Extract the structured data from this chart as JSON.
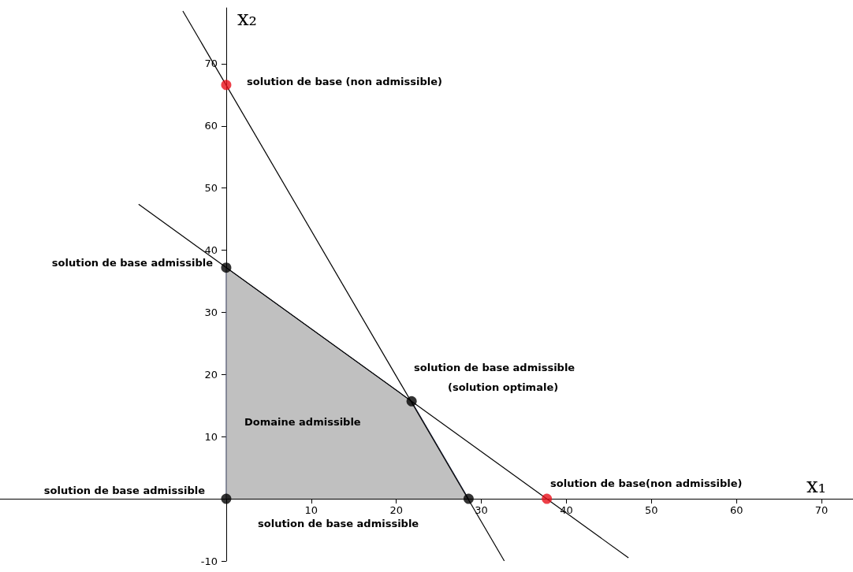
{
  "chart_data": {
    "type": "line",
    "xlabel": "x₁",
    "ylabel": "x₂",
    "xlim": [
      -26.6,
      73.7
    ],
    "ylim": [
      -10,
      79
    ],
    "xticks": [
      10,
      20,
      30,
      40,
      50,
      60,
      70
    ],
    "yticks": [
      -10,
      10,
      20,
      30,
      40,
      50,
      60,
      70
    ],
    "grid": false,
    "series": [
      {
        "type": "area",
        "color": "#c0c0c0",
        "x": [
          0,
          0,
          21.8,
          28.5
        ],
        "values": [
          0,
          37.2,
          15.7,
          0
        ]
      },
      {
        "color": "#000000",
        "x": [
          -5.1,
          32.7
        ],
        "values": [
          78.5,
          -10
        ]
      },
      {
        "color": "#000000",
        "x": [
          -10.3,
          47.3
        ],
        "values": [
          47.4,
          -9.5
        ]
      },
      {
        "type": "scatter",
        "marker": "circle",
        "colors": [
          "#000000",
          "#000000",
          "#000000",
          "#000000",
          "#e8101a",
          "#e8101a"
        ],
        "x": [
          0,
          0,
          21.8,
          28.5,
          0,
          37.7
        ],
        "values": [
          0,
          37.2,
          15.7,
          0,
          66.6,
          0
        ]
      }
    ],
    "annotations": [
      "solution de base (non admissible)",
      "solution de base admissible",
      "solution de base admissible",
      "(solution optimale)",
      "Domaine admissible",
      "solution de base(non admissible)",
      "solution de base admissible",
      "solution de base admissible"
    ]
  }
}
